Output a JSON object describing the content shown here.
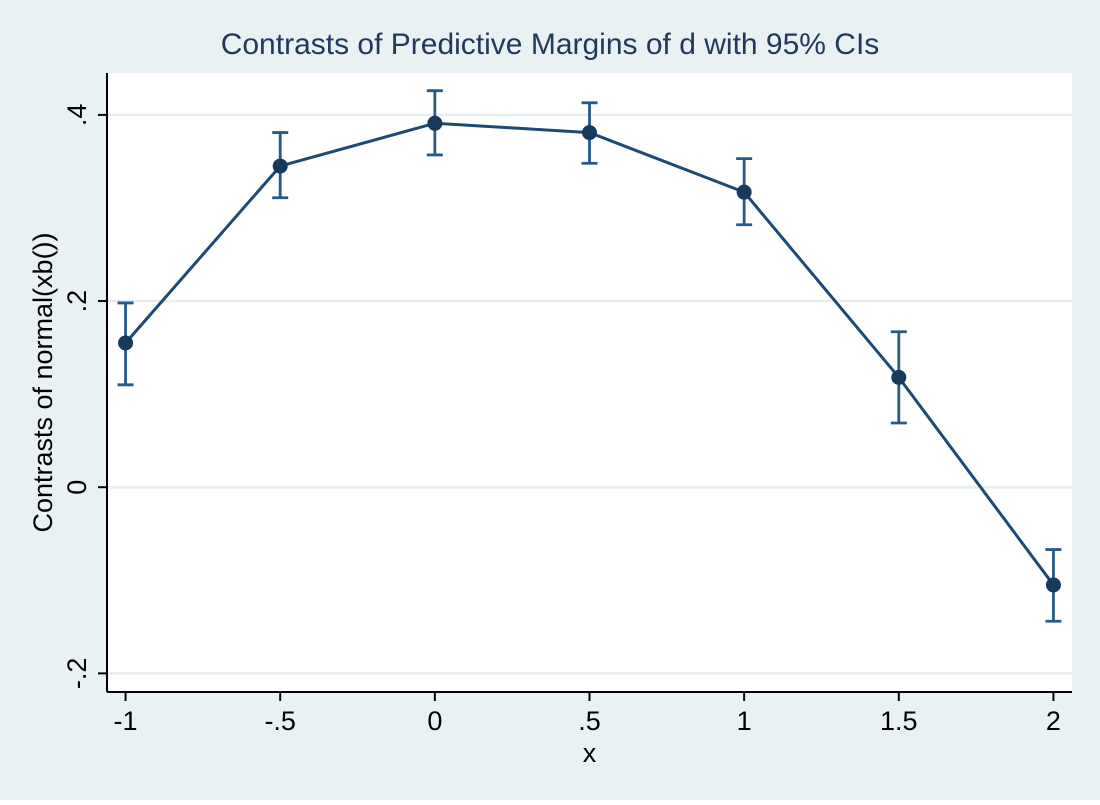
{
  "chart_data": {
    "type": "line",
    "title": "Contrasts of Predictive Margins of d with 95% CIs",
    "xlabel": "x",
    "ylabel": "Contrasts of normal(xb())",
    "x": [
      -1,
      -0.5,
      0,
      0.5,
      1,
      1.5,
      2
    ],
    "y": [
      0.155,
      0.345,
      0.391,
      0.381,
      0.317,
      0.118,
      -0.105
    ],
    "ci_low": [
      0.11,
      0.311,
      0.357,
      0.348,
      0.282,
      0.069,
      -0.144
    ],
    "ci_high": [
      0.198,
      0.381,
      0.426,
      0.413,
      0.353,
      0.167,
      -0.067
    ],
    "x_ticks": {
      "values": [
        -1,
        -0.5,
        0,
        0.5,
        1,
        1.5,
        2
      ],
      "labels": [
        "-1",
        "-.5",
        "0",
        ".5",
        "1",
        "1.5",
        "2"
      ]
    },
    "y_ticks": {
      "values": [
        -0.2,
        0,
        0.2,
        0.4
      ],
      "labels": [
        "-.2",
        "0",
        ".2",
        ".4"
      ]
    },
    "xlim": [
      -1.06,
      2.06
    ],
    "ylim": [
      -0.22,
      0.445
    ],
    "grid": "horizontal-only",
    "legend": "none",
    "colors": {
      "background": "#eaf1f3",
      "plot_background": "#ffffff",
      "gridline": "#e6eef2",
      "axis": "#000000",
      "title_text": "#21395c",
      "series_line": "#1d4a75",
      "marker": "#17395c",
      "ci": "#27598a"
    }
  }
}
